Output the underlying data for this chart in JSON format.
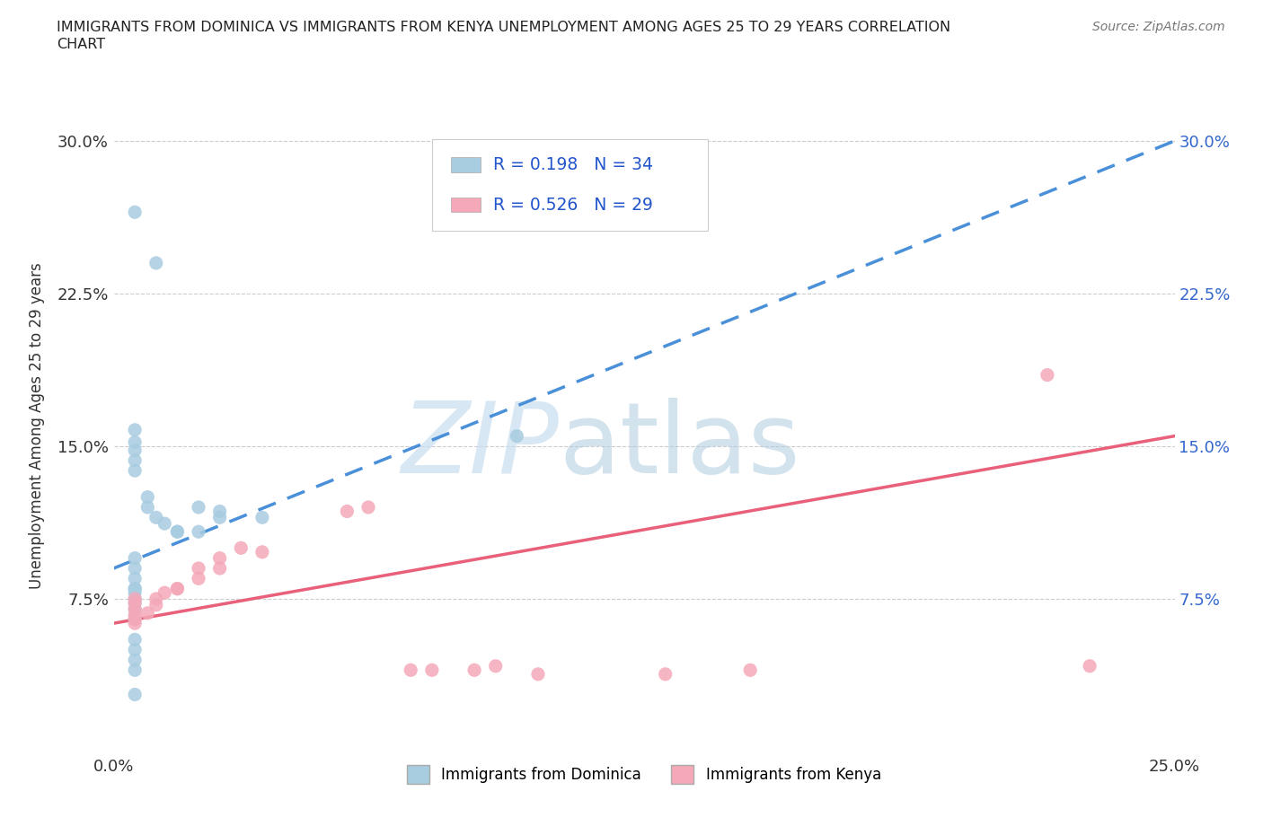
{
  "title_line1": "IMMIGRANTS FROM DOMINICA VS IMMIGRANTS FROM KENYA UNEMPLOYMENT AMONG AGES 25 TO 29 YEARS CORRELATION",
  "title_line2": "CHART",
  "source_text": "Source: ZipAtlas.com",
  "ylabel": "Unemployment Among Ages 25 to 29 years",
  "xlim": [
    0.0,
    0.25
  ],
  "ylim": [
    0.0,
    0.32
  ],
  "xticks": [
    0.0,
    0.05,
    0.1,
    0.15,
    0.2,
    0.25
  ],
  "yticks": [
    0.0,
    0.075,
    0.15,
    0.225,
    0.3
  ],
  "dominica_color": "#a8cce0",
  "kenya_color": "#f4a8b8",
  "dominica_trend_color": "#4a90d9",
  "kenya_trend_color": "#e8607a",
  "R_dominica": 0.198,
  "N_dominica": 34,
  "R_kenya": 0.526,
  "N_kenya": 29,
  "legend_label_dominica": "Immigrants from Dominica",
  "legend_label_kenya": "Immigrants from Kenya",
  "watermark_zip": "ZIP",
  "watermark_atlas": "atlas",
  "background_color": "#ffffff",
  "grid_color": "#cccccc",
  "dominica_x": [
    0.005,
    0.01,
    0.005,
    0.005,
    0.005,
    0.005,
    0.005,
    0.008,
    0.008,
    0.01,
    0.012,
    0.015,
    0.015,
    0.02,
    0.005,
    0.005,
    0.005,
    0.005,
    0.005,
    0.005,
    0.005,
    0.005,
    0.005,
    0.005,
    0.02,
    0.025,
    0.025,
    0.035,
    0.005,
    0.005,
    0.005,
    0.005,
    0.095,
    0.005
  ],
  "dominica_y": [
    0.265,
    0.24,
    0.158,
    0.152,
    0.148,
    0.143,
    0.138,
    0.125,
    0.12,
    0.115,
    0.112,
    0.108,
    0.108,
    0.108,
    0.095,
    0.09,
    0.085,
    0.08,
    0.08,
    0.078,
    0.075,
    0.073,
    0.07,
    0.065,
    0.12,
    0.118,
    0.115,
    0.115,
    0.055,
    0.05,
    0.045,
    0.04,
    0.155,
    0.028
  ],
  "kenya_x": [
    0.005,
    0.005,
    0.005,
    0.005,
    0.005,
    0.005,
    0.008,
    0.01,
    0.01,
    0.012,
    0.015,
    0.015,
    0.02,
    0.02,
    0.025,
    0.025,
    0.03,
    0.035,
    0.055,
    0.06,
    0.07,
    0.075,
    0.085,
    0.09,
    0.1,
    0.13,
    0.15,
    0.22,
    0.23
  ],
  "kenya_y": [
    0.075,
    0.073,
    0.07,
    0.067,
    0.065,
    0.063,
    0.068,
    0.072,
    0.075,
    0.078,
    0.08,
    0.08,
    0.085,
    0.09,
    0.09,
    0.095,
    0.1,
    0.098,
    0.118,
    0.12,
    0.04,
    0.04,
    0.04,
    0.042,
    0.038,
    0.038,
    0.04,
    0.185,
    0.042
  ],
  "dominica_trend_x0": 0.0,
  "dominica_trend_y0": 0.09,
  "dominica_trend_x1": 0.25,
  "dominica_trend_y1": 0.3,
  "kenya_trend_x0": 0.0,
  "kenya_trend_y0": 0.063,
  "kenya_trend_x1": 0.25,
  "kenya_trend_y1": 0.155
}
